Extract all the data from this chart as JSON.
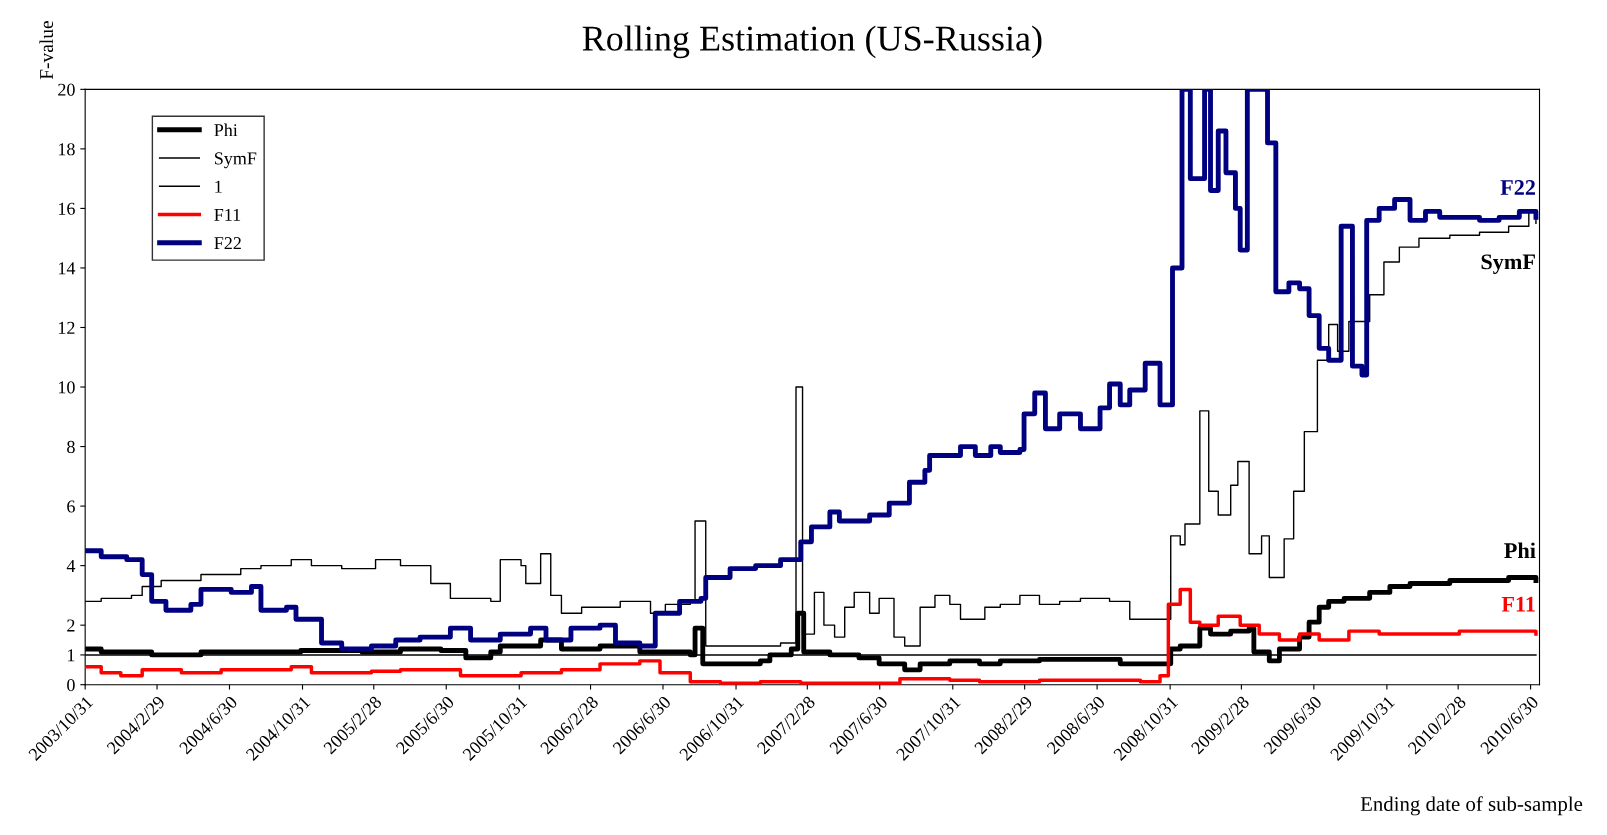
{
  "chart_data": {
    "type": "step",
    "title": "Rolling Estimation (US-Russia)",
    "xlabel": "Ending date of sub-sample",
    "ylabel": "F-value",
    "xlim": [
      "2003-10-31",
      "2010-07-15"
    ],
    "xticks": [
      {
        "value": "2003-10-31",
        "label": "2003/10/31"
      },
      {
        "value": "2004-02-29",
        "label": "2004/2/29"
      },
      {
        "value": "2004-06-30",
        "label": "2004/6/30"
      },
      {
        "value": "2004-10-31",
        "label": "2004/10/31"
      },
      {
        "value": "2005-02-28",
        "label": "2005/2/28"
      },
      {
        "value": "2005-06-30",
        "label": "2005/6/30"
      },
      {
        "value": "2005-10-31",
        "label": "2005/10/31"
      },
      {
        "value": "2006-02-28",
        "label": "2006/2/28"
      },
      {
        "value": "2006-06-30",
        "label": "2006/6/30"
      },
      {
        "value": "2006-10-31",
        "label": "2006/10/31"
      },
      {
        "value": "2007-02-28",
        "label": "2007/2/28"
      },
      {
        "value": "2007-06-30",
        "label": "2007/6/30"
      },
      {
        "value": "2007-10-31",
        "label": "2007/10/31"
      },
      {
        "value": "2008-02-29",
        "label": "2008/2/29"
      },
      {
        "value": "2008-06-30",
        "label": "2008/6/30"
      },
      {
        "value": "2008-10-31",
        "label": "2008/10/31"
      },
      {
        "value": "2009-02-28",
        "label": "2009/2/28"
      },
      {
        "value": "2009-06-30",
        "label": "2009/6/30"
      },
      {
        "value": "2009-10-31",
        "label": "2009/10/31"
      },
      {
        "value": "2010-02-28",
        "label": "2010/2/28"
      },
      {
        "value": "2010-06-30",
        "label": "2010/6/30"
      }
    ],
    "ylim": [
      0,
      20
    ],
    "yticks": [
      0,
      1,
      2,
      4,
      6,
      8,
      10,
      12,
      14,
      16,
      18,
      20
    ],
    "grid": false,
    "legend": "top left",
    "series": [
      {
        "name": "Phi",
        "color": "#000000",
        "x": [
          "2003-10-31",
          "2003-11-27",
          "2004-02-20",
          "2004-05-13",
          "2004-08-06",
          "2004-10-28",
          "2005-02-08",
          "2005-04-14",
          "2005-06-21",
          "2005-08-02",
          "2005-09-13",
          "2005-09-29",
          "2005-12-06",
          "2006-01-10",
          "2006-03-16",
          "2006-05-22",
          "2006-08-15",
          "2006-08-23",
          "2006-09-05",
          "2006-12-11",
          "2006-12-27",
          "2007-02-01",
          "2007-02-12",
          "2007-02-22",
          "2007-04-07",
          "2007-05-26",
          "2007-06-29",
          "2007-08-11",
          "2007-09-06",
          "2007-10-26",
          "2007-12-15",
          "2008-01-19",
          "2008-03-25",
          "2008-06-02",
          "2008-08-08",
          "2008-10-22",
          "2008-11-01",
          "2008-11-17",
          "2008-12-20",
          "2009-01-07",
          "2009-02-10",
          "2009-03-13",
          "2009-03-21",
          "2009-04-16",
          "2009-05-03",
          "2009-06-06",
          "2009-06-22",
          "2009-07-09",
          "2009-07-25",
          "2009-08-20",
          "2009-10-02",
          "2009-11-05",
          "2009-12-09",
          "2010-02-14",
          "2010-04-05",
          "2010-05-24",
          "2010-07-09"
        ],
        "values": [
          1.2,
          1.1,
          1.0,
          1.1,
          1.1,
          1.15,
          1.1,
          1.2,
          1.15,
          0.9,
          1.1,
          1.3,
          1.5,
          1.2,
          1.3,
          1.1,
          1.0,
          1.9,
          0.7,
          0.8,
          1.0,
          1.2,
          2.4,
          1.1,
          1.0,
          0.9,
          0.7,
          0.5,
          0.7,
          0.8,
          0.7,
          0.8,
          0.85,
          0.85,
          0.7,
          0.7,
          1.2,
          1.3,
          1.9,
          1.7,
          1.8,
          1.9,
          1.1,
          0.8,
          1.2,
          1.6,
          2.1,
          2.6,
          2.8,
          2.9,
          3.1,
          3.3,
          3.4,
          3.5,
          3.5,
          3.6,
          3.5
        ]
      },
      {
        "name": "SymF",
        "color": "#000000",
        "x": [
          "2003-10-31",
          "2003-11-27",
          "2004-01-17",
          "2004-02-04",
          "2004-03-07",
          "2004-05-13",
          "2004-07-19",
          "2004-08-22",
          "2004-10-12",
          "2004-11-15",
          "2005-01-05",
          "2005-03-03",
          "2005-04-14",
          "2005-06-04",
          "2005-07-07",
          "2005-09-13",
          "2005-09-29",
          "2005-11-03",
          "2005-11-11",
          "2005-12-06",
          "2005-12-23",
          "2006-01-10",
          "2006-02-13",
          "2006-04-19",
          "2006-06-09",
          "2006-07-04",
          "2006-08-15",
          "2006-08-23",
          "2006-09-10",
          "2006-11-08",
          "2007-01-14",
          "2007-02-09",
          "2007-02-20",
          "2007-03-12",
          "2007-03-28",
          "2007-04-15",
          "2007-05-02",
          "2007-05-18",
          "2007-06-13",
          "2007-06-29",
          "2007-07-24",
          "2007-08-11",
          "2007-09-06",
          "2007-10-01",
          "2007-10-26",
          "2007-11-13",
          "2007-12-24",
          "2008-01-19",
          "2008-02-21",
          "2008-03-25",
          "2008-04-28",
          "2008-06-02",
          "2008-07-21",
          "2008-08-24",
          "2008-10-14",
          "2008-11-01",
          "2008-11-17",
          "2008-11-25",
          "2008-12-20",
          "2009-01-04",
          "2009-01-20",
          "2009-02-10",
          "2009-02-22",
          "2009-03-13",
          "2009-04-03",
          "2009-04-16",
          "2009-05-11",
          "2009-05-27",
          "2009-06-14",
          "2009-07-06",
          "2009-07-25",
          "2009-08-09",
          "2009-08-28",
          "2009-10-02",
          "2009-10-26",
          "2009-11-21",
          "2009-12-24",
          "2010-02-14",
          "2010-04-05",
          "2010-05-24",
          "2010-06-27",
          "2010-07-09"
        ],
        "values": [
          2.8,
          2.9,
          3.0,
          3.3,
          3.5,
          3.7,
          3.9,
          4.0,
          4.2,
          4.0,
          3.9,
          4.2,
          4.0,
          3.4,
          2.9,
          2.8,
          4.2,
          4.0,
          3.4,
          4.4,
          3.0,
          2.4,
          2.6,
          2.8,
          2.4,
          2.7,
          2.8,
          5.5,
          1.3,
          1.3,
          1.4,
          10.0,
          1.7,
          3.1,
          2.0,
          1.6,
          2.6,
          3.1,
          2.4,
          2.9,
          1.6,
          1.3,
          2.6,
          3.0,
          2.7,
          2.2,
          2.6,
          2.7,
          3.0,
          2.7,
          2.8,
          2.9,
          2.8,
          2.2,
          2.2,
          5.0,
          4.7,
          5.4,
          9.2,
          6.5,
          5.7,
          6.7,
          7.5,
          4.4,
          5.0,
          3.6,
          4.9,
          6.5,
          8.5,
          10.9,
          12.1,
          11.2,
          12.2,
          13.1,
          14.2,
          14.7,
          15.0,
          15.1,
          15.2,
          15.4,
          15.9,
          15.5
        ]
      },
      {
        "name": "1",
        "color": "#000000",
        "x": [
          "2003-10-31",
          "2010-07-09"
        ],
        "values": [
          1,
          1
        ]
      },
      {
        "name": "F11",
        "color": "#ff0000",
        "x": [
          "2003-10-31",
          "2003-11-27",
          "2003-12-30",
          "2004-02-04",
          "2004-04-10",
          "2004-06-16",
          "2004-08-22",
          "2004-10-12",
          "2004-11-15",
          "2005-01-05",
          "2005-02-24",
          "2005-04-14",
          "2005-06-21",
          "2005-07-24",
          "2005-09-29",
          "2005-11-03",
          "2006-01-10",
          "2006-03-16",
          "2006-05-22",
          "2006-06-25",
          "2006-08-15",
          "2006-10-05",
          "2006-12-11",
          "2007-02-17",
          "2007-06-13",
          "2007-08-03",
          "2007-10-26",
          "2007-12-15",
          "2008-03-25",
          "2008-07-05",
          "2008-09-11",
          "2008-10-14",
          "2008-10-28",
          "2008-11-17",
          "2008-12-04",
          "2008-12-20",
          "2009-01-20",
          "2009-02-26",
          "2009-03-30",
          "2009-05-03",
          "2009-06-06",
          "2009-07-09",
          "2009-08-28",
          "2009-10-18",
          "2009-12-24",
          "2010-03-02",
          "2010-05-08",
          "2010-07-09"
        ],
        "values": [
          0.6,
          0.4,
          0.3,
          0.5,
          0.4,
          0.5,
          0.5,
          0.6,
          0.4,
          0.4,
          0.45,
          0.5,
          0.5,
          0.3,
          0.3,
          0.4,
          0.5,
          0.7,
          0.8,
          0.4,
          0.1,
          0.05,
          0.1,
          0.05,
          0.05,
          0.2,
          0.15,
          0.1,
          0.15,
          0.15,
          0.1,
          0.3,
          2.7,
          3.2,
          2.1,
          2.0,
          2.3,
          2.0,
          1.7,
          1.5,
          1.7,
          1.5,
          1.8,
          1.7,
          1.7,
          1.8,
          1.8,
          1.7
        ]
      },
      {
        "name": "F22",
        "color": "#000080",
        "x": [
          "2003-10-31",
          "2003-11-27",
          "2004-01-09",
          "2004-02-04",
          "2004-02-20",
          "2004-03-15",
          "2004-04-26",
          "2004-05-13",
          "2004-07-03",
          "2004-08-06",
          "2004-08-22",
          "2004-10-04",
          "2004-10-20",
          "2004-12-02",
          "2005-01-05",
          "2005-02-24",
          "2005-04-06",
          "2005-05-17",
          "2005-07-07",
          "2005-08-10",
          "2005-09-29",
          "2005-11-19",
          "2005-12-15",
          "2006-01-26",
          "2006-03-16",
          "2006-04-11",
          "2006-05-22",
          "2006-06-17",
          "2006-07-28",
          "2006-09-02",
          "2006-09-10",
          "2006-10-21",
          "2006-12-03",
          "2007-01-14",
          "2007-02-17",
          "2007-03-07",
          "2007-04-07",
          "2007-04-23",
          "2007-06-13",
          "2007-07-16",
          "2007-08-19",
          "2007-09-14",
          "2007-09-22",
          "2007-11-13",
          "2007-12-08",
          "2008-01-03",
          "2008-01-19",
          "2008-02-21",
          "2008-02-28",
          "2008-03-17",
          "2008-04-04",
          "2008-04-28",
          "2008-06-02",
          "2008-07-05",
          "2008-07-21",
          "2008-08-08",
          "2008-08-24",
          "2008-09-19",
          "2008-10-14",
          "2008-11-04",
          "2008-11-20",
          "2008-12-04",
          "2008-12-28",
          "2009-01-07",
          "2009-01-20",
          "2009-02-02",
          "2009-02-18",
          "2009-02-26",
          "2009-03-10",
          "2009-04-13",
          "2009-04-27",
          "2009-05-19",
          "2009-06-06",
          "2009-06-22",
          "2009-07-09",
          "2009-07-25",
          "2009-08-15",
          "2009-09-03",
          "2009-09-19",
          "2009-09-27",
          "2009-10-18",
          "2009-11-13",
          "2009-12-09",
          "2010-01-04",
          "2010-01-28",
          "2010-04-05",
          "2010-05-08",
          "2010-06-11",
          "2010-07-09"
        ],
        "values": [
          4.5,
          4.3,
          4.2,
          3.7,
          2.8,
          2.5,
          2.7,
          3.2,
          3.1,
          3.3,
          2.5,
          2.6,
          2.2,
          1.4,
          1.2,
          1.3,
          1.5,
          1.6,
          1.9,
          1.5,
          1.7,
          1.9,
          1.5,
          1.9,
          2.0,
          1.4,
          1.3,
          2.4,
          2.8,
          2.9,
          3.6,
          3.9,
          4.0,
          4.2,
          4.8,
          5.3,
          5.8,
          5.5,
          5.7,
          6.1,
          6.8,
          7.2,
          7.7,
          8.0,
          7.7,
          8.0,
          7.8,
          7.9,
          9.1,
          9.8,
          8.6,
          9.1,
          8.6,
          9.3,
          10.1,
          9.4,
          9.9,
          10.8,
          9.4,
          14.0,
          20,
          17,
          20,
          16.6,
          18.6,
          17.2,
          16,
          14.6,
          20,
          18.2,
          13.2,
          13.5,
          13.3,
          12.4,
          11.3,
          10.9,
          15.4,
          10.7,
          10.4,
          15.6,
          16.0,
          16.3,
          15.6,
          15.9,
          15.7,
          15.6,
          15.7,
          15.9,
          15.7
        ]
      }
    ],
    "annotations": [
      "F22",
      "SymF",
      "Phi",
      "F11"
    ]
  }
}
